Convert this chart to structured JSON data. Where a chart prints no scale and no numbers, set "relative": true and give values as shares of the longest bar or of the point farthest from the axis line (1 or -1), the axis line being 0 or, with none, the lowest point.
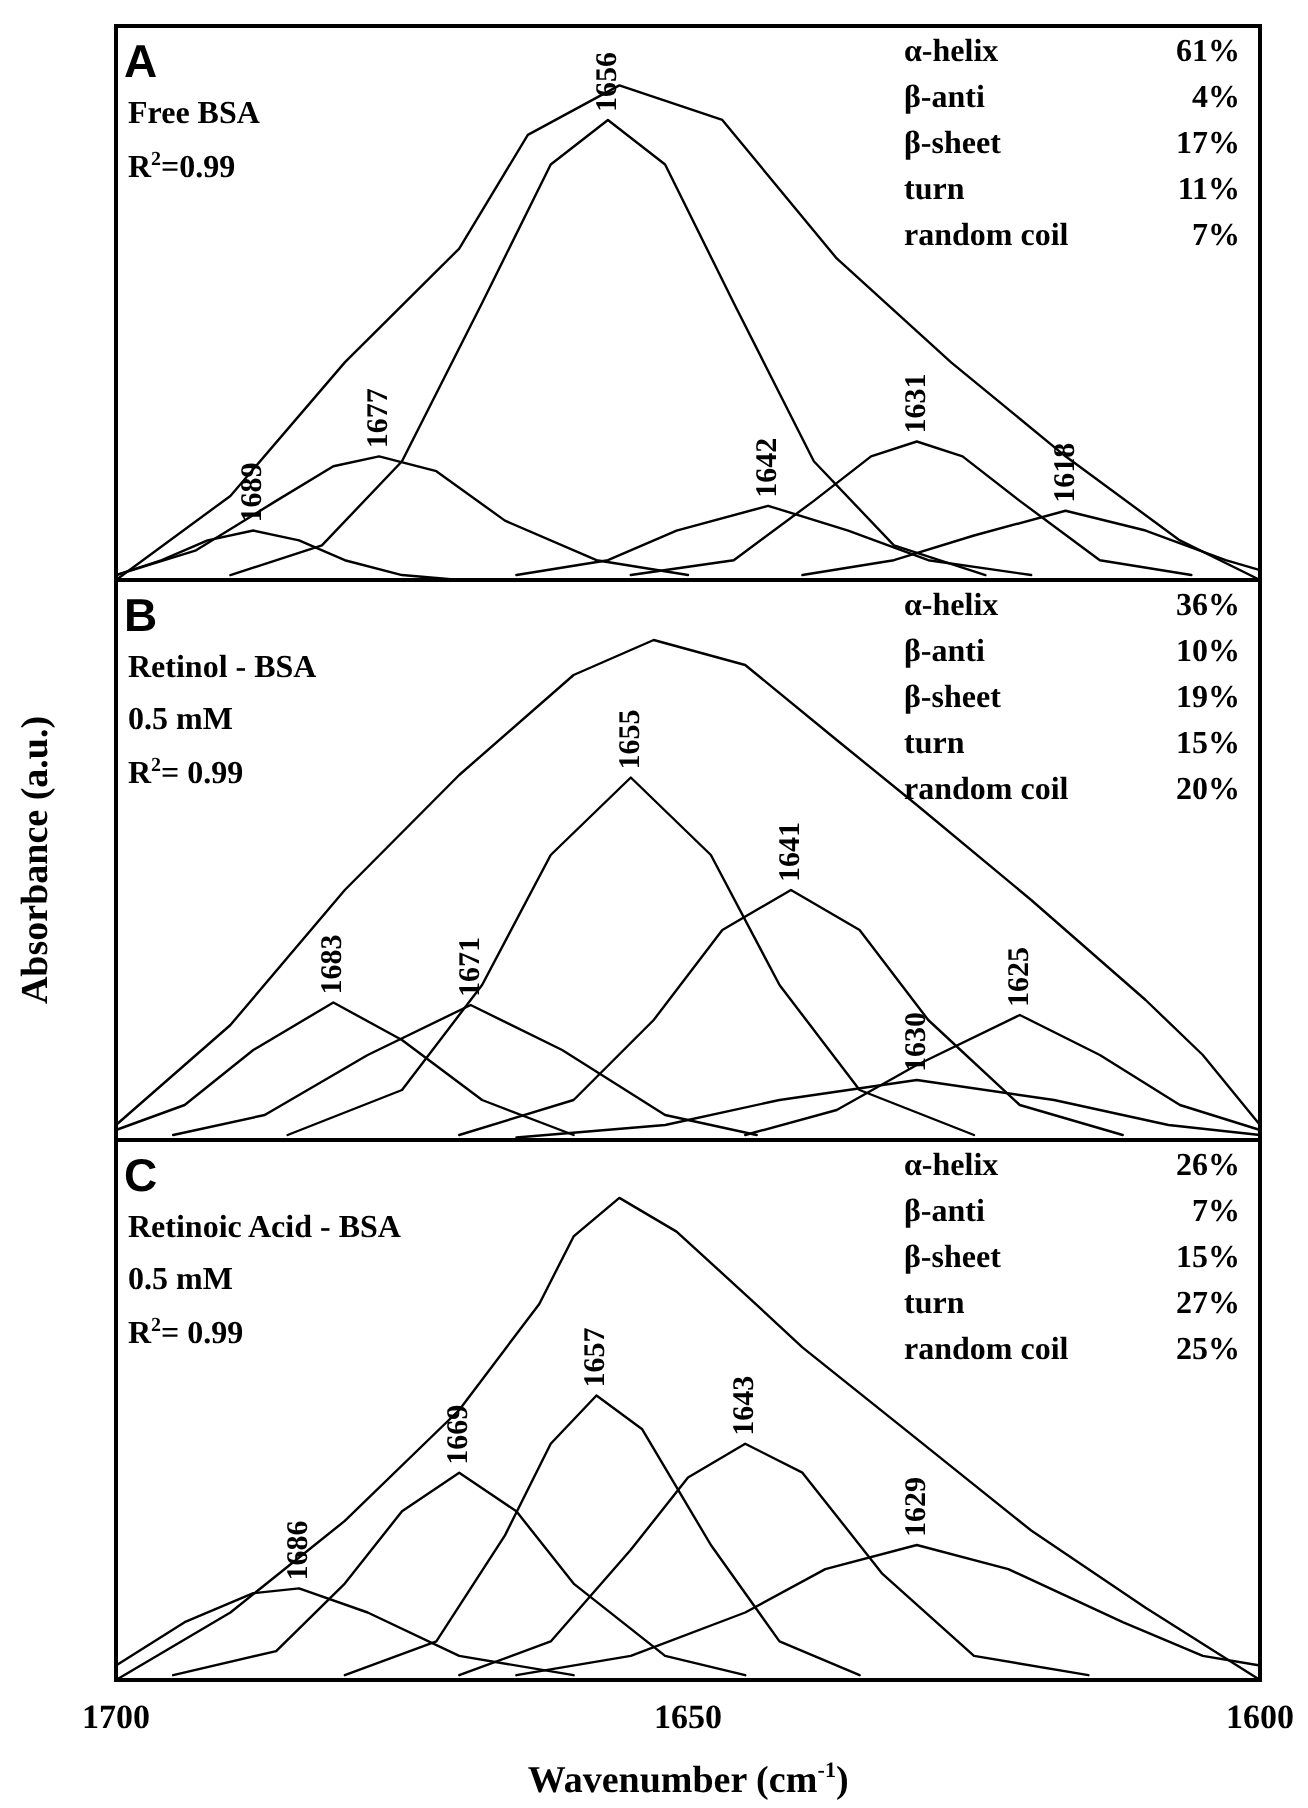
{
  "chart_data": [
    {
      "type": "line",
      "title": "A",
      "subtitle": "Free BSA\nR$^{2}$=0.99",
      "relative": true,
      "xlim": [
        1700,
        1600
      ],
      "xticks": [
        1700,
        1650,
        1600
      ],
      "tick_labels": false,
      "marker": "none",
      "line_style": "solid",
      "series": [
        {
          "color": "#000000",
          "x": [
            1700,
            1690,
            1680,
            1670,
            1664,
            1656,
            1647,
            1637,
            1627,
            1617,
            1607,
            1600
          ],
          "values": [
            0,
            0.17,
            0.44,
            0.67,
            0.9,
            1.0,
            0.93,
            0.65,
            0.44,
            0.25,
            0.08,
            0
          ]
        },
        {
          "color": "#000000",
          "x": [
            1700,
            1696,
            1692,
            1688,
            1684,
            1680,
            1675,
            1670
          ],
          "values": [
            0.01,
            0.04,
            0.08,
            0.1,
            0.08,
            0.04,
            0.01,
            0
          ]
        },
        {
          "color": "#000000",
          "x": [
            1700,
            1693,
            1686,
            1681,
            1677,
            1672,
            1666,
            1658,
            1650
          ],
          "values": [
            0.01,
            0.06,
            0.16,
            0.23,
            0.25,
            0.22,
            0.12,
            0.04,
            0.01
          ]
        },
        {
          "color": "#000000",
          "x": [
            1690,
            1682,
            1675,
            1668,
            1662,
            1657,
            1652,
            1646,
            1639,
            1632,
            1624
          ],
          "values": [
            0.01,
            0.07,
            0.24,
            0.56,
            0.84,
            0.93,
            0.84,
            0.56,
            0.24,
            0.07,
            0.01
          ]
        },
        {
          "color": "#000000",
          "x": [
            1665,
            1657,
            1651,
            1643,
            1636,
            1629,
            1620
          ],
          "values": [
            0.01,
            0.04,
            0.1,
            0.15,
            0.1,
            0.04,
            0.01
          ]
        },
        {
          "color": "#000000",
          "x": [
            1655,
            1646,
            1639,
            1634,
            1630,
            1626,
            1621,
            1614,
            1606
          ],
          "values": [
            0.01,
            0.04,
            0.16,
            0.25,
            0.28,
            0.25,
            0.16,
            0.04,
            0.01
          ]
        },
        {
          "color": "#000000",
          "x": [
            1640,
            1632,
            1625,
            1617,
            1610,
            1603,
            1600
          ],
          "values": [
            0.01,
            0.04,
            0.09,
            0.14,
            0.1,
            0.04,
            0.02
          ]
        }
      ],
      "annotations": [
        {
          "text": "1689",
          "x": 1688,
          "y": 0.1
        },
        {
          "text": "1677",
          "x": 1677,
          "y": 0.25
        },
        {
          "text": "1656",
          "x": 1657,
          "y": 0.93
        },
        {
          "text": "1642",
          "x": 1643,
          "y": 0.15
        },
        {
          "text": "1631",
          "x": 1630,
          "y": 0.28
        },
        {
          "text": "1618",
          "x": 1617,
          "y": 0.14
        },
        "α-helix 61%",
        "β-anti 4%",
        "β-sheet 17%",
        "turn 11%",
        "random coil 7%"
      ]
    },
    {
      "type": "line",
      "title": "B",
      "subtitle": "Retinol - BSA\n0.5 mM\nR$^{2}$= 0.99",
      "ylabel": "Absorbance (a.u.)",
      "relative": true,
      "xlim": [
        1700,
        1600
      ],
      "xticks": [
        1700,
        1650,
        1600
      ],
      "tick_labels": false,
      "marker": "none",
      "line_style": "solid",
      "series": [
        {
          "color": "#000000",
          "x": [
            1700,
            1690,
            1680,
            1670,
            1660,
            1653,
            1645,
            1637,
            1630,
            1620,
            1610,
            1605,
            1600
          ],
          "values": [
            0.03,
            0.23,
            0.5,
            0.73,
            0.93,
            1.0,
            0.95,
            0.8,
            0.67,
            0.48,
            0.28,
            0.17,
            0.03
          ]
        },
        {
          "color": "#000000",
          "x": [
            1700,
            1694,
            1688,
            1681,
            1675,
            1668,
            1660
          ],
          "values": [
            0.02,
            0.07,
            0.18,
            0.275,
            0.2,
            0.08,
            0.01
          ]
        },
        {
          "color": "#000000",
          "x": [
            1695,
            1687,
            1678,
            1669,
            1661,
            1652,
            1644
          ],
          "values": [
            0.01,
            0.05,
            0.17,
            0.27,
            0.18,
            0.05,
            0.01
          ]
        },
        {
          "color": "#000000",
          "x": [
            1685,
            1675,
            1668,
            1662,
            1655,
            1648,
            1642,
            1635,
            1625
          ],
          "values": [
            0.01,
            0.1,
            0.31,
            0.57,
            0.725,
            0.57,
            0.31,
            0.1,
            0.01
          ]
        },
        {
          "color": "#000000",
          "x": [
            1670,
            1660,
            1653,
            1647,
            1641,
            1635,
            1629,
            1621,
            1612
          ],
          "values": [
            0.01,
            0.08,
            0.24,
            0.42,
            0.5,
            0.42,
            0.24,
            0.07,
            0.01
          ]
        },
        {
          "color": "#000000",
          "x": [
            1665,
            1652,
            1642,
            1630,
            1618,
            1608,
            1600
          ],
          "values": [
            0.005,
            0.03,
            0.08,
            0.12,
            0.08,
            0.03,
            0.01
          ]
        },
        {
          "color": "#000000",
          "x": [
            1645,
            1637,
            1630,
            1621,
            1614,
            1607,
            1600
          ],
          "values": [
            0.01,
            0.06,
            0.15,
            0.25,
            0.17,
            0.07,
            0.02
          ]
        }
      ],
      "annotations": [
        {
          "text": "1683",
          "x": 1681,
          "y": 0.275
        },
        {
          "text": "1671",
          "x": 1669,
          "y": 0.27
        },
        {
          "text": "1655",
          "x": 1655,
          "y": 0.725
        },
        {
          "text": "1641",
          "x": 1641,
          "y": 0.5
        },
        {
          "text": "1630",
          "x": 1630,
          "y": 0.12
        },
        {
          "text": "1625",
          "x": 1621,
          "y": 0.25
        },
        "α-helix 36%",
        "β-anti 10%",
        "β-sheet 19%",
        "turn 15%",
        "random coil 20%"
      ]
    },
    {
      "type": "line",
      "title": "C",
      "subtitle": "Retinoic Acid - BSA\n0.5 mM\nR$^{2}$= 0.99",
      "xlabel": "Wavenumber (cm$^{-1}$)",
      "relative": true,
      "xlim": [
        1700,
        1600
      ],
      "xticks": [
        1700,
        1650,
        1600
      ],
      "tick_labels": "x",
      "marker": "none",
      "line_style": "solid",
      "series": [
        {
          "color": "#000000",
          "x": [
            1700,
            1690,
            1680,
            1670,
            1663,
            1660,
            1656,
            1651,
            1645,
            1640,
            1630,
            1620,
            1610,
            1600
          ],
          "values": [
            0,
            0.14,
            0.33,
            0.56,
            0.78,
            0.92,
            1.0,
            0.93,
            0.8,
            0.69,
            0.5,
            0.31,
            0.15,
            0
          ]
        },
        {
          "color": "#000000",
          "x": [
            1700,
            1694,
            1688,
            1684,
            1678,
            1670,
            1660
          ],
          "values": [
            0.03,
            0.12,
            0.18,
            0.19,
            0.14,
            0.05,
            0.01
          ]
        },
        {
          "color": "#000000",
          "x": [
            1695,
            1686,
            1680,
            1675,
            1670,
            1665,
            1660,
            1652,
            1645
          ],
          "values": [
            0.01,
            0.06,
            0.2,
            0.35,
            0.43,
            0.35,
            0.2,
            0.05,
            0.01
          ]
        },
        {
          "color": "#000000",
          "x": [
            1680,
            1672,
            1666,
            1662,
            1658,
            1654,
            1648,
            1642,
            1635
          ],
          "values": [
            0.01,
            0.08,
            0.3,
            0.49,
            0.59,
            0.52,
            0.28,
            0.08,
            0.01
          ]
        },
        {
          "color": "#000000",
          "x": [
            1670,
            1662,
            1655,
            1650,
            1645,
            1640,
            1633,
            1625,
            1615
          ],
          "values": [
            0.01,
            0.08,
            0.27,
            0.42,
            0.49,
            0.43,
            0.22,
            0.05,
            0.01
          ]
        },
        {
          "color": "#000000",
          "x": [
            1665,
            1655,
            1645,
            1638,
            1630,
            1622,
            1612,
            1605,
            1600
          ],
          "values": [
            0.01,
            0.05,
            0.14,
            0.23,
            0.28,
            0.23,
            0.12,
            0.05,
            0.03
          ]
        }
      ],
      "annotations": [
        {
          "text": "1686",
          "x": 1684,
          "y": 0.19
        },
        {
          "text": "1669",
          "x": 1670,
          "y": 0.43
        },
        {
          "text": "1657",
          "x": 1658,
          "y": 0.59
        },
        {
          "text": "1643",
          "x": 1645,
          "y": 0.49
        },
        {
          "text": "1629",
          "x": 1630,
          "y": 0.28
        },
        "α-helix 26%",
        "β-anti 7%",
        "β-sheet 15%",
        "turn 27%",
        "random coil 25%"
      ]
    }
  ]
}
